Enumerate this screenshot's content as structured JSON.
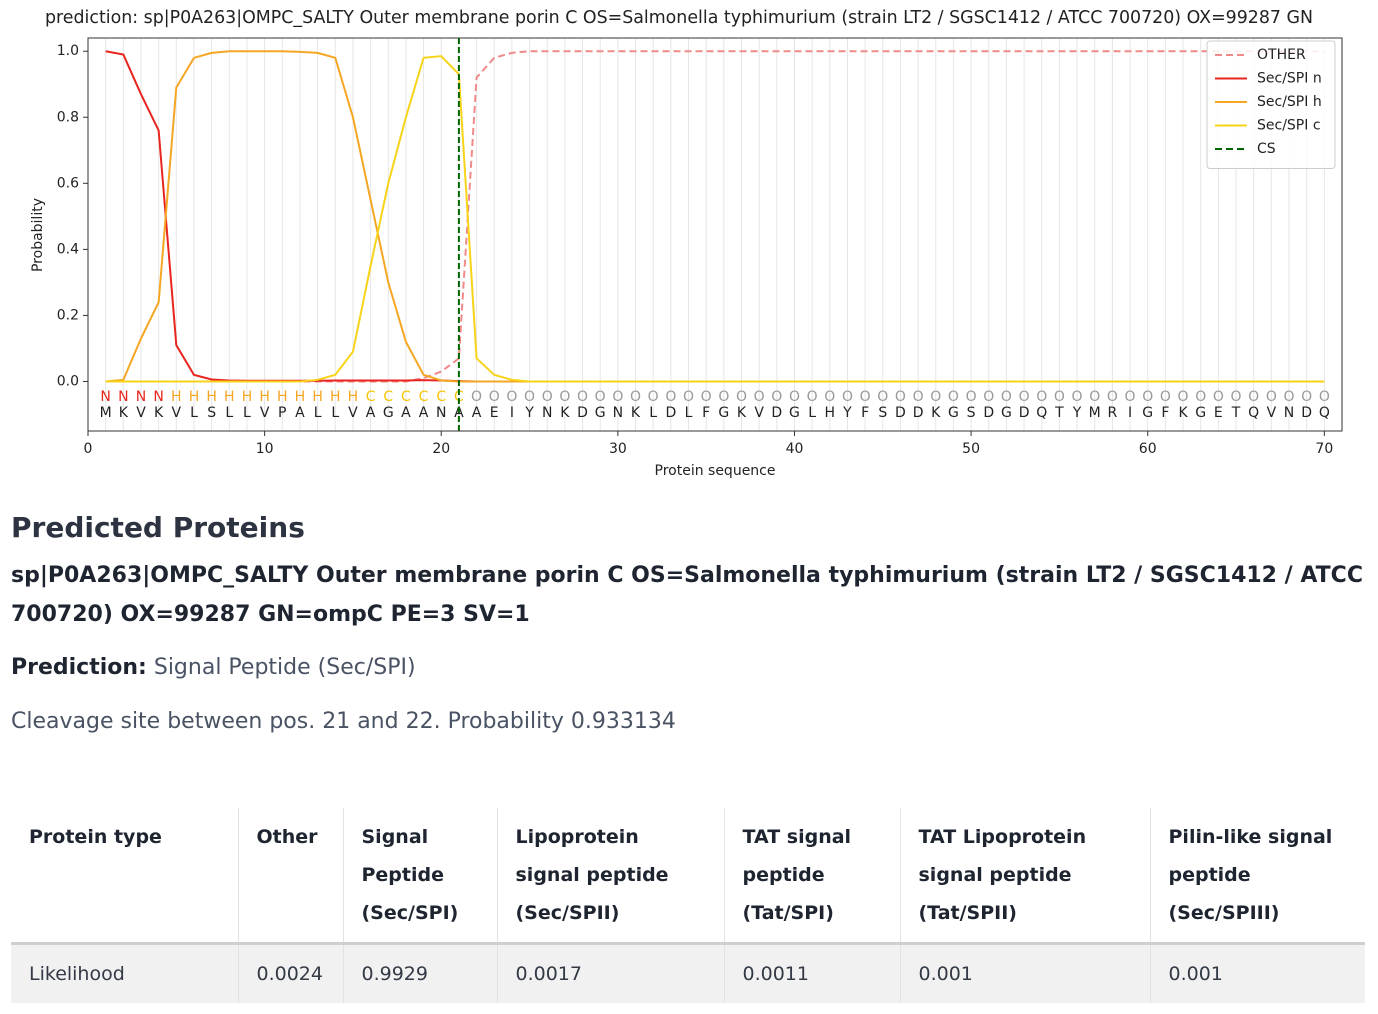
{
  "chart_data": {
    "type": "line",
    "title": "prediction: sp|P0A263|OMPC_SALTY Outer membrane porin C OS=Salmonella typhimurium (strain LT2 / SGSC1412 / ATCC 700720) OX=99287 GN",
    "xlabel": "Protein sequence",
    "ylabel": "Probability",
    "x": [
      1,
      2,
      3,
      4,
      5,
      6,
      7,
      8,
      9,
      10,
      11,
      12,
      13,
      14,
      15,
      16,
      17,
      18,
      19,
      20,
      21,
      22,
      23,
      24,
      25,
      26,
      27,
      28,
      29,
      30,
      31,
      32,
      33,
      34,
      35,
      36,
      37,
      38,
      39,
      40,
      41,
      42,
      43,
      44,
      45,
      46,
      47,
      48,
      49,
      50,
      51,
      52,
      53,
      54,
      55,
      56,
      57,
      58,
      59,
      60,
      61,
      62,
      63,
      64,
      65,
      66,
      67,
      68,
      69,
      70
    ],
    "xlim": [
      0,
      71
    ],
    "xticks": [
      0,
      10,
      20,
      30,
      40,
      50,
      60,
      70
    ],
    "ylim": [
      -0.15,
      1.04
    ],
    "yticks": [
      {
        "value": 0,
        "label": "0.0"
      },
      0.2,
      0.4,
      0.6,
      0.8,
      {
        "value": 1,
        "label": "1.0"
      }
    ],
    "grid": true,
    "legend": "upper right",
    "series": [
      {
        "name": "OTHER",
        "color": "#f08a8a",
        "style": "dashed",
        "values": [
          0,
          0,
          0,
          0,
          0,
          0,
          0,
          0,
          0,
          0,
          0,
          0,
          0,
          0,
          0,
          0,
          0,
          0,
          0.01,
          0.03,
          0.07,
          0.92,
          0.98,
          0.995,
          1,
          1,
          1,
          1,
          1,
          1,
          1,
          1,
          1,
          1,
          1,
          1,
          1,
          1,
          1,
          1,
          1,
          1,
          1,
          1,
          1,
          1,
          1,
          1,
          1,
          1,
          1,
          1,
          1,
          1,
          1,
          1,
          1,
          1,
          1,
          1,
          1,
          1,
          1,
          1,
          1,
          1,
          1,
          1,
          1,
          1
        ]
      },
      {
        "name": "Sec/SPI n",
        "color": "#e8251f",
        "style": "solid",
        "values": [
          1.0,
          0.99,
          0.87,
          0.76,
          0.11,
          0.02,
          0.006,
          0.003,
          0.002,
          0.002,
          0.002,
          0.002,
          0.002,
          0.003,
          0.003,
          0.003,
          0.003,
          0.003,
          0.004,
          0.003,
          0.001,
          0,
          0,
          0,
          0,
          0,
          0,
          0,
          0,
          0,
          0,
          0,
          0,
          0,
          0,
          0,
          0,
          0,
          0,
          0,
          0,
          0,
          0,
          0,
          0,
          0,
          0,
          0,
          0,
          0,
          0,
          0,
          0,
          0,
          0,
          0,
          0,
          0,
          0,
          0,
          0,
          0,
          0,
          0,
          0,
          0,
          0,
          0,
          0,
          0
        ]
      },
      {
        "name": "Sec/SPI h",
        "color": "#f5a623",
        "style": "solid",
        "values": [
          0,
          0.005,
          0.13,
          0.24,
          0.89,
          0.98,
          0.995,
          1.0,
          1.0,
          1.0,
          1.0,
          0.998,
          0.995,
          0.98,
          0.8,
          0.55,
          0.3,
          0.12,
          0.02,
          0.003,
          0,
          0,
          0,
          0,
          0,
          0,
          0,
          0,
          0,
          0,
          0,
          0,
          0,
          0,
          0,
          0,
          0,
          0,
          0,
          0,
          0,
          0,
          0,
          0,
          0,
          0,
          0,
          0,
          0,
          0,
          0,
          0,
          0,
          0,
          0,
          0,
          0,
          0,
          0,
          0,
          0,
          0,
          0,
          0,
          0,
          0,
          0,
          0,
          0,
          0
        ]
      },
      {
        "name": "Sec/SPI c",
        "color": "#f7d31a",
        "style": "solid",
        "values": [
          0,
          0,
          0,
          0,
          0,
          0,
          0,
          0,
          0,
          0,
          0,
          0,
          0.005,
          0.02,
          0.09,
          0.35,
          0.6,
          0.8,
          0.98,
          0.985,
          0.93,
          0.07,
          0.02,
          0.005,
          0,
          0,
          0,
          0,
          0,
          0,
          0,
          0,
          0,
          0,
          0,
          0,
          0,
          0,
          0,
          0,
          0,
          0,
          0,
          0,
          0,
          0,
          0,
          0,
          0,
          0,
          0,
          0,
          0,
          0,
          0,
          0,
          0,
          0,
          0,
          0,
          0,
          0,
          0,
          0,
          0,
          0,
          0,
          0,
          0,
          0
        ]
      }
    ],
    "cleavage_site": {
      "name": "CS",
      "color": "#006400",
      "x": 21
    },
    "residue_labels": [
      "N",
      "N",
      "N",
      "N",
      "H",
      "H",
      "H",
      "H",
      "H",
      "H",
      "H",
      "H",
      "H",
      "H",
      "H",
      "C",
      "C",
      "C",
      "C",
      "C",
      "C",
      "O",
      "O",
      "O",
      "O",
      "O",
      "O",
      "O",
      "O",
      "O",
      "O",
      "O",
      "O",
      "O",
      "O",
      "O",
      "O",
      "O",
      "O",
      "O",
      "O",
      "O",
      "O",
      "O",
      "O",
      "O",
      "O",
      "O",
      "O",
      "O",
      "O",
      "O",
      "O",
      "O",
      "O",
      "O",
      "O",
      "O",
      "O",
      "O",
      "O",
      "O",
      "O",
      "O",
      "O",
      "O",
      "O",
      "O",
      "O",
      "O"
    ],
    "sequence": [
      "M",
      "K",
      "V",
      "K",
      "V",
      "L",
      "S",
      "L",
      "L",
      "V",
      "P",
      "A",
      "L",
      "L",
      "V",
      "A",
      "G",
      "A",
      "A",
      "N",
      "A",
      "A",
      "E",
      "I",
      "Y",
      "N",
      "K",
      "D",
      "G",
      "N",
      "K",
      "L",
      "D",
      "L",
      "F",
      "G",
      "K",
      "V",
      "D",
      "G",
      "L",
      "H",
      "Y",
      "F",
      "S",
      "D",
      "D",
      "K",
      "G",
      "S",
      "D",
      "G",
      "D",
      "Q",
      "T",
      "Y",
      "M",
      "R",
      "I",
      "G",
      "F",
      "K",
      "G",
      "E",
      "T",
      "Q",
      "V",
      "N",
      "D",
      "Q"
    ],
    "label_colors": {
      "N": "#e8251f",
      "H": "#f5a623",
      "C": "#f5c400",
      "O": "#999999"
    }
  },
  "document": {
    "heading": "Predicted Proteins",
    "protein": "sp|P0A263|OMPC_SALTY Outer membrane porin C OS=Salmonella typhimurium (strain LT2 / SGSC1412 / ATCC 700720) OX=99287 GN=ompC PE=3 SV=1",
    "prediction_label": "Prediction:",
    "prediction": "Signal Peptide (Sec/SPI)",
    "cleavage": "Cleavage site between pos. 21 and 22. Probability 0.933134",
    "table": {
      "header": [
        "Protein type",
        "Other",
        "Signal Peptide (Sec/SPI)",
        "Lipoprotein signal peptide (Sec/SPII)",
        "TAT signal peptide (Tat/SPI)",
        "TAT Lipoprotein signal peptide (Tat/SPII)",
        "Pilin-like signal peptide (Sec/SPIII)"
      ],
      "rows": [
        [
          "Likelihood",
          0.0024,
          0.9929,
          0.0017,
          0.0011,
          0.001,
          0.001
        ]
      ]
    }
  }
}
